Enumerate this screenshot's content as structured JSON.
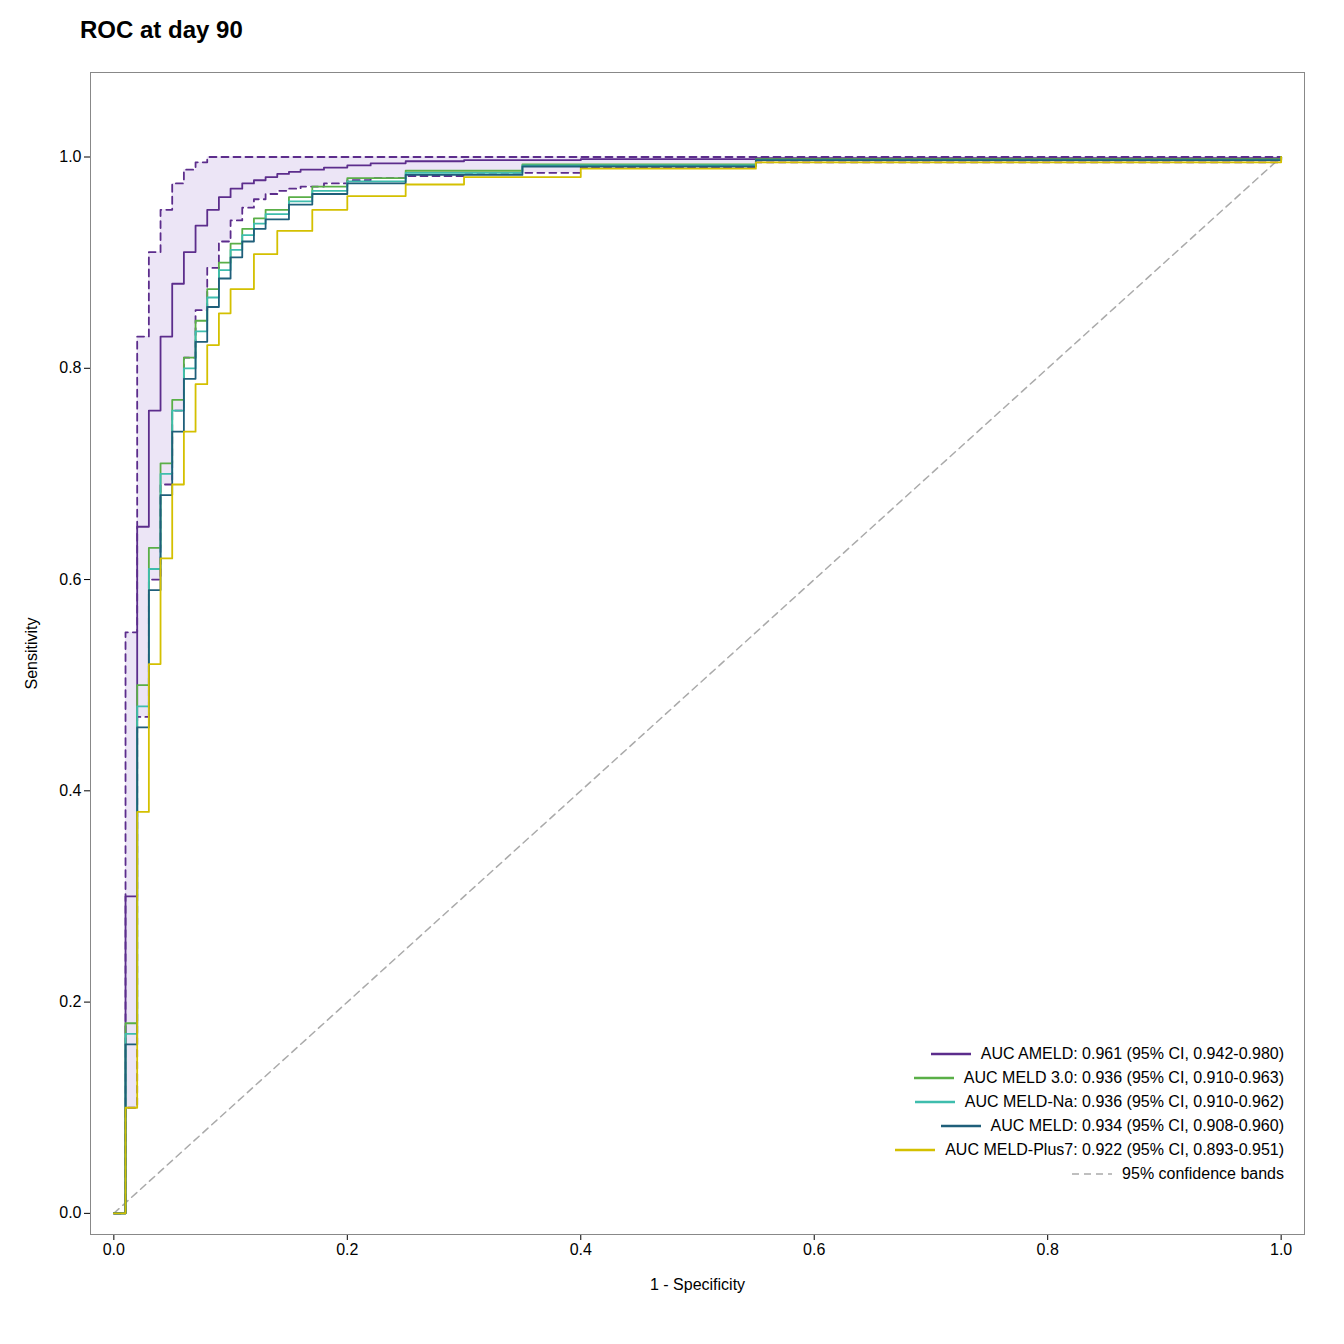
{
  "chart_data": {
    "type": "line",
    "title": "ROC at day 90",
    "xlabel": "1 - Specificity",
    "ylabel": "Sensitivity",
    "xlim": [
      -0.02,
      1.02
    ],
    "ylim": [
      -0.02,
      1.08
    ],
    "xticks": [
      {
        "value": 0.0,
        "label": "0.0"
      },
      {
        "value": 0.2,
        "label": "0.2"
      },
      {
        "value": 0.4,
        "label": "0.4"
      },
      {
        "value": 0.6,
        "label": "0.6"
      },
      {
        "value": 0.8,
        "label": "0.8"
      },
      {
        "value": 1.0,
        "label": "1.0"
      }
    ],
    "yticks": [
      {
        "value": 0.0,
        "label": "0.0"
      },
      {
        "value": 0.2,
        "label": "0.2"
      },
      {
        "value": 0.4,
        "label": "0.4"
      },
      {
        "value": 0.6,
        "label": "0.6"
      },
      {
        "value": 0.8,
        "label": "0.8"
      },
      {
        "value": 1.0,
        "label": "1.0"
      }
    ],
    "grid": false,
    "legend": "lower right",
    "series": [
      {
        "name": "AUC AMELD: 0.961 (95% CI, 0.942-0.980)",
        "color": "#5c2d8c",
        "type": "step",
        "line_style": "solid",
        "x": [
          0.0,
          0.005,
          0.01,
          0.02,
          0.03,
          0.04,
          0.05,
          0.06,
          0.07,
          0.08,
          0.09,
          0.1,
          0.11,
          0.12,
          0.13,
          0.14,
          0.15,
          0.16,
          0.18,
          0.2,
          0.22,
          0.25,
          0.3,
          0.4,
          0.55,
          1.0
        ],
        "values": [
          0.0,
          0.0,
          0.3,
          0.65,
          0.76,
          0.83,
          0.88,
          0.91,
          0.935,
          0.95,
          0.962,
          0.97,
          0.975,
          0.978,
          0.981,
          0.984,
          0.986,
          0.988,
          0.99,
          0.992,
          0.994,
          0.996,
          0.997,
          0.998,
          0.999,
          1.0
        ]
      },
      {
        "name": "AUC MELD 3.0: 0.936 (95% CI, 0.910-0.963)",
        "color": "#5aaf47",
        "type": "step",
        "line_style": "solid",
        "x": [
          0.0,
          0.005,
          0.01,
          0.02,
          0.03,
          0.04,
          0.05,
          0.06,
          0.07,
          0.08,
          0.09,
          0.1,
          0.11,
          0.12,
          0.13,
          0.15,
          0.17,
          0.2,
          0.25,
          0.35,
          0.55,
          1.0
        ],
        "values": [
          0.0,
          0.0,
          0.18,
          0.5,
          0.63,
          0.71,
          0.77,
          0.81,
          0.845,
          0.875,
          0.9,
          0.918,
          0.932,
          0.942,
          0.95,
          0.962,
          0.972,
          0.98,
          0.987,
          0.993,
          0.998,
          1.0
        ]
      },
      {
        "name": "AUC MELD-Na: 0.936 (95% CI, 0.910-0.962)",
        "color": "#3ebdad",
        "type": "step",
        "line_style": "solid",
        "x": [
          0.0,
          0.005,
          0.01,
          0.02,
          0.03,
          0.04,
          0.05,
          0.06,
          0.07,
          0.08,
          0.09,
          0.1,
          0.11,
          0.12,
          0.13,
          0.15,
          0.17,
          0.2,
          0.25,
          0.35,
          0.55,
          1.0
        ],
        "values": [
          0.0,
          0.0,
          0.17,
          0.48,
          0.61,
          0.7,
          0.76,
          0.8,
          0.835,
          0.867,
          0.893,
          0.912,
          0.926,
          0.937,
          0.946,
          0.958,
          0.968,
          0.977,
          0.985,
          0.992,
          0.997,
          1.0
        ]
      },
      {
        "name": "AUC MELD: 0.934 (95% CI, 0.908-0.960)",
        "color": "#1f5f7a",
        "type": "step",
        "line_style": "solid",
        "x": [
          0.0,
          0.005,
          0.01,
          0.02,
          0.03,
          0.04,
          0.05,
          0.06,
          0.07,
          0.08,
          0.09,
          0.1,
          0.11,
          0.12,
          0.13,
          0.15,
          0.17,
          0.2,
          0.25,
          0.35,
          0.55,
          1.0
        ],
        "values": [
          0.0,
          0.0,
          0.16,
          0.46,
          0.59,
          0.68,
          0.74,
          0.79,
          0.825,
          0.858,
          0.885,
          0.905,
          0.92,
          0.932,
          0.941,
          0.955,
          0.965,
          0.975,
          0.983,
          0.991,
          0.997,
          1.0
        ]
      },
      {
        "name": "AUC MELD-Plus7: 0.922 (95% CI, 0.893-0.951)",
        "color": "#d4c000",
        "type": "step",
        "line_style": "solid",
        "x": [
          0.0,
          0.005,
          0.01,
          0.02,
          0.03,
          0.04,
          0.05,
          0.06,
          0.07,
          0.08,
          0.09,
          0.1,
          0.12,
          0.14,
          0.17,
          0.2,
          0.25,
          0.3,
          0.4,
          0.55,
          1.0
        ],
        "values": [
          0.0,
          0.0,
          0.1,
          0.38,
          0.52,
          0.62,
          0.69,
          0.74,
          0.785,
          0.822,
          0.852,
          0.875,
          0.908,
          0.93,
          0.95,
          0.963,
          0.974,
          0.981,
          0.989,
          0.995,
          1.0
        ]
      },
      {
        "name": "95% confidence bands",
        "color": "#aaaaaa",
        "type": "line",
        "line_style": "dashed",
        "x": [
          0,
          1
        ],
        "values": [
          0,
          1
        ]
      }
    ],
    "confidence_band": {
      "color": "#ddd0ee",
      "line_color": "#5c2d8c",
      "line_style": "dashed",
      "upper_x": [
        0.0,
        0.005,
        0.01,
        0.02,
        0.03,
        0.04,
        0.05,
        0.06,
        0.07,
        0.08,
        0.09,
        0.1,
        0.11,
        0.12,
        0.13,
        0.14,
        0.5,
        1.0
      ],
      "upper": [
        0.0,
        0.0,
        0.55,
        0.83,
        0.91,
        0.95,
        0.975,
        0.988,
        0.995,
        1.0,
        1.0,
        1.0,
        1.0,
        1.0,
        1.0,
        1.0,
        1.0,
        1.0
      ],
      "lower_x": [
        0.0,
        0.005,
        0.01,
        0.02,
        0.03,
        0.04,
        0.05,
        0.06,
        0.07,
        0.08,
        0.09,
        0.1,
        0.11,
        0.12,
        0.13,
        0.14,
        0.15,
        0.16,
        0.18,
        0.2,
        0.22,
        0.25,
        0.3,
        0.4,
        0.55,
        1.0
      ],
      "lower": [
        0.0,
        0.0,
        0.1,
        0.47,
        0.6,
        0.69,
        0.76,
        0.81,
        0.855,
        0.895,
        0.92,
        0.94,
        0.952,
        0.96,
        0.965,
        0.968,
        0.97,
        0.972,
        0.975,
        0.978,
        0.98,
        0.982,
        0.985,
        0.99,
        0.995,
        1.0
      ]
    }
  }
}
